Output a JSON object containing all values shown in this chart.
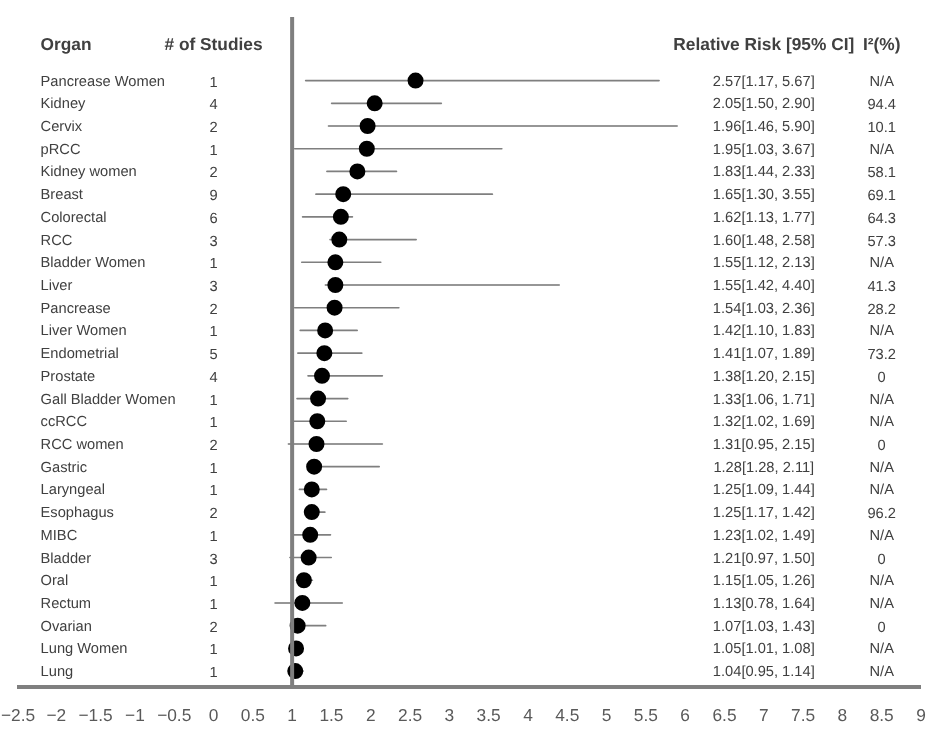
{
  "chart_data": {
    "type": "scatter",
    "orientation": "horizontal",
    "ylabel": "Organ",
    "categories": [
      "Pancrease Women",
      "Kidney",
      "Cervix",
      "pRCC",
      "Kidney women",
      "Breast",
      "Colorectal",
      "RCC",
      "Bladder Women",
      "Liver",
      "Pancrease",
      "Liver Women",
      "Endometrial",
      "Prostate",
      "Gall Bladder Women",
      "ccRCC",
      "RCC women",
      "Gastric",
      "Laryngeal",
      "Esophagus",
      "MIBC",
      "Bladder",
      "Oral",
      "Rectum",
      "Ovarian",
      "Lung Women",
      "Lung"
    ],
    "series": [
      {
        "color": "#000000",
        "values": [
          2.57,
          2.05,
          1.96,
          1.95,
          1.83,
          1.65,
          1.62,
          1.6,
          1.55,
          1.55,
          1.54,
          1.42,
          1.41,
          1.38,
          1.33,
          1.32,
          1.31,
          1.28,
          1.25,
          1.25,
          1.23,
          1.21,
          1.15,
          1.13,
          1.07,
          1.05,
          1.04
        ],
        "errors": [
          [
            1.17,
            5.67
          ],
          [
            1.5,
            2.9
          ],
          [
            1.46,
            5.9
          ],
          [
            1.03,
            3.67
          ],
          [
            1.44,
            2.33
          ],
          [
            1.3,
            3.55
          ],
          [
            1.13,
            1.77
          ],
          [
            1.48,
            2.58
          ],
          [
            1.12,
            2.13
          ],
          [
            1.42,
            4.4
          ],
          [
            1.03,
            2.36
          ],
          [
            1.1,
            1.83
          ],
          [
            1.07,
            1.89
          ],
          [
            1.2,
            2.15
          ],
          [
            1.06,
            1.71
          ],
          [
            1.02,
            1.69
          ],
          [
            0.95,
            2.15
          ],
          [
            1.28,
            2.11
          ],
          [
            1.09,
            1.44
          ],
          [
            1.17,
            1.42
          ],
          [
            1.02,
            1.49
          ],
          [
            0.97,
            1.5
          ],
          [
            1.05,
            1.26
          ],
          [
            0.78,
            1.64
          ],
          [
            1.03,
            1.43
          ],
          [
            1.01,
            1.08
          ],
          [
            0.95,
            1.14
          ]
        ]
      }
    ],
    "marker": "circle",
    "xlim": [
      -2.5,
      9
    ],
    "xticks": [
      -2.5,
      -2,
      -1.5,
      -1,
      -0.5,
      0,
      0.5,
      1,
      1.5,
      2,
      2.5,
      3,
      3.5,
      4,
      4.5,
      5,
      5.5,
      6,
      6.5,
      7,
      7.5,
      8,
      8.5,
      9
    ],
    "tick_labels": "x",
    "ref_lines": [
      {
        "axis": "x",
        "value": 1,
        "color": "#7f7f7f"
      }
    ],
    "annotations": [
      "# of Studies",
      "Relative Risk [95% CI]",
      "I²(%)",
      "1",
      "2.57[1.17, 5.67]",
      "N/A",
      "4",
      "2.05[1.50, 2.90]",
      "94.4",
      "2",
      "1.96[1.46, 5.90]",
      "10.1",
      "1",
      "1.95[1.03, 3.67]",
      "N/A",
      "2",
      "1.83[1.44, 2.33]",
      "58.1",
      "9",
      "1.65[1.30, 3.55]",
      "69.1",
      "6",
      "1.62[1.13, 1.77]",
      "64.3",
      "3",
      "1.60[1.48, 2.58]",
      "57.3",
      "1",
      "1.55[1.12, 2.13]",
      "N/A",
      "3",
      "1.55[1.42, 4.40]",
      "41.3",
      "2",
      "1.54[1.03, 2.36]",
      "28.2",
      "1",
      "1.42[1.10, 1.83]",
      "N/A",
      "5",
      "1.41[1.07, 1.89]",
      "73.2",
      "4",
      "1.38[1.20, 2.15]",
      "0",
      "1",
      "1.33[1.06, 1.71]",
      "N/A",
      "1",
      "1.32[1.02, 1.69]",
      "N/A",
      "2",
      "1.31[0.95, 2.15]",
      "0",
      "1",
      "1.28[1.28, 2.11]",
      "N/A",
      "1",
      "1.25[1.09, 1.44]",
      "N/A",
      "2",
      "1.25[1.17, 1.42]",
      "96.2",
      "1",
      "1.23[1.02, 1.49]",
      "N/A",
      "3",
      "1.21[0.97, 1.50]",
      "0",
      "1",
      "1.15[1.05, 1.26]",
      "N/A",
      "1",
      "1.13[0.78, 1.64]",
      "N/A",
      "2",
      "1.07[1.03, 1.43]",
      "0",
      "1",
      "1.05[1.01, 1.08]",
      "N/A",
      "1",
      "1.04[0.95, 1.14]",
      "N/A"
    ]
  }
}
